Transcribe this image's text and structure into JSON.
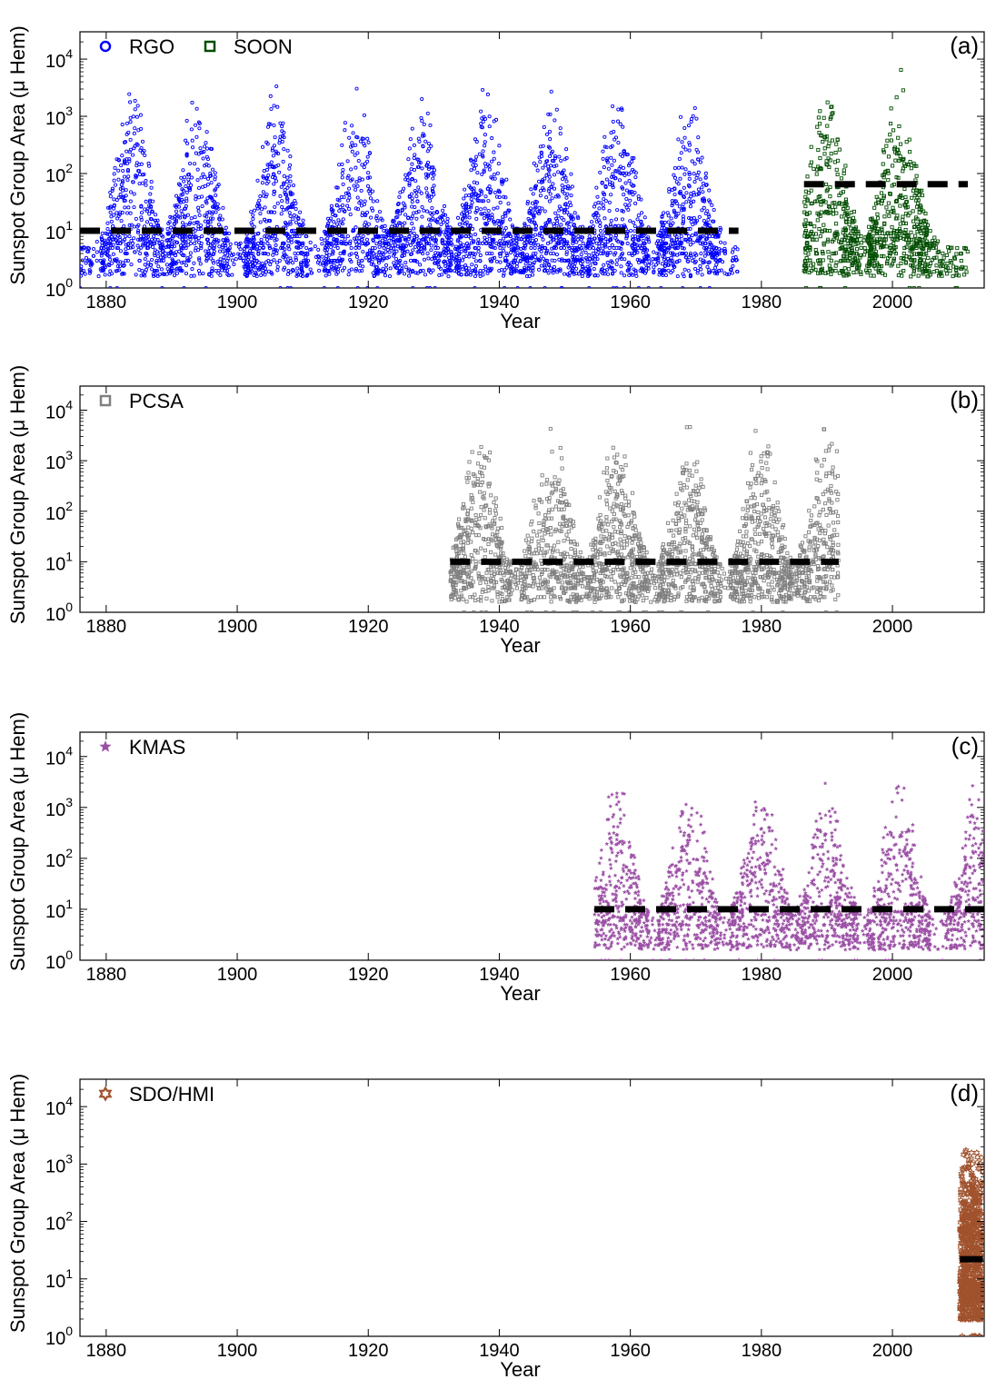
{
  "figure": {
    "ylabel": "Sunspot Group Area (μ Hem)",
    "xlabel": "Year"
  },
  "chart_data": [
    {
      "type": "scatter",
      "panel_label": "(a)",
      "xlabel": "Year",
      "ylabel": "Sunspot Group Area (μ Hem)",
      "xlim": [
        1876,
        2014
      ],
      "ylim": [
        1,
        30000
      ],
      "yscale": "log",
      "xticks": [
        "1880",
        "1900",
        "1920",
        "1940",
        "1960",
        "1980",
        "2000"
      ],
      "yticks": [
        {
          "base": "10",
          "exp": "0"
        },
        {
          "base": "10",
          "exp": "1"
        },
        {
          "base": "10",
          "exp": "2"
        },
        {
          "base": "10",
          "exp": "3"
        },
        {
          "base": "10",
          "exp": "4"
        }
      ],
      "legend_position": "top-left",
      "series": [
        {
          "name": "RGO",
          "marker": "circle",
          "color": "#0000ff",
          "x_range": [
            1876,
            1976.5
          ],
          "peak_years": [
            1884,
            1894,
            1906,
            1918,
            1928,
            1938,
            1948,
            1958,
            1969
          ],
          "threshold": 10,
          "max": 5500
        },
        {
          "name": "SOON",
          "marker": "square",
          "color": "#004d00",
          "x_range": [
            1986.5,
            2011.5
          ],
          "peak_years": [
            1990,
            2001
          ],
          "threshold": 65,
          "max": 8000
        }
      ]
    },
    {
      "type": "scatter",
      "panel_label": "(b)",
      "xlabel": "Year",
      "ylabel": "Sunspot Group Area (μ Hem)",
      "xlim": [
        1876,
        2014
      ],
      "ylim": [
        1,
        30000
      ],
      "yscale": "log",
      "xticks": [
        "1880",
        "1900",
        "1920",
        "1940",
        "1960",
        "1980",
        "2000"
      ],
      "yticks": [
        {
          "base": "10",
          "exp": "0"
        },
        {
          "base": "10",
          "exp": "1"
        },
        {
          "base": "10",
          "exp": "2"
        },
        {
          "base": "10",
          "exp": "3"
        },
        {
          "base": "10",
          "exp": "4"
        }
      ],
      "legend_position": "top-left",
      "series": [
        {
          "name": "PCSA",
          "marker": "square",
          "color": "#808080",
          "x_range": [
            1932.5,
            1991.8
          ],
          "peak_years": [
            1937,
            1948,
            1958,
            1969,
            1980,
            1990
          ],
          "threshold": 10,
          "max": 9500
        }
      ]
    },
    {
      "type": "scatter",
      "panel_label": "(c)",
      "xlabel": "Year",
      "ylabel": "Sunspot Group Area (μ Hem)",
      "xlim": [
        1876,
        2014
      ],
      "ylim": [
        1,
        30000
      ],
      "yscale": "log",
      "xticks": [
        "1880",
        "1900",
        "1920",
        "1940",
        "1960",
        "1980",
        "2000"
      ],
      "yticks": [
        {
          "base": "10",
          "exp": "0"
        },
        {
          "base": "10",
          "exp": "1"
        },
        {
          "base": "10",
          "exp": "2"
        },
        {
          "base": "10",
          "exp": "3"
        },
        {
          "base": "10",
          "exp": "4"
        }
      ],
      "legend_position": "top-left",
      "series": [
        {
          "name": "KMAS",
          "marker": "star",
          "color": "#9b4fa5",
          "x_range": [
            1954.5,
            2014
          ],
          "peak_years": [
            1958,
            1969,
            1980,
            1990,
            2001,
            2013
          ],
          "threshold": 10,
          "max": 4800
        }
      ]
    },
    {
      "type": "scatter",
      "panel_label": "(d)",
      "xlabel": "Year",
      "ylabel": "Sunspot Group Area (μ Hem)",
      "xlim": [
        1876,
        2014
      ],
      "ylim": [
        1,
        30000
      ],
      "yscale": "log",
      "xticks": [
        "1880",
        "1900",
        "1920",
        "1940",
        "1960",
        "1980",
        "2000"
      ],
      "yticks": [
        {
          "base": "10",
          "exp": "0"
        },
        {
          "base": "10",
          "exp": "1"
        },
        {
          "base": "10",
          "exp": "2"
        },
        {
          "base": "10",
          "exp": "3"
        },
        {
          "base": "10",
          "exp": "4"
        }
      ],
      "legend_position": "top-left",
      "series": [
        {
          "name": "SDO/HMI",
          "marker": "hexagram",
          "color": "#a0522d",
          "x_range": [
            2010.3,
            2013.8
          ],
          "peak_years": [
            2012
          ],
          "threshold": 22,
          "max": 2000
        }
      ]
    }
  ]
}
